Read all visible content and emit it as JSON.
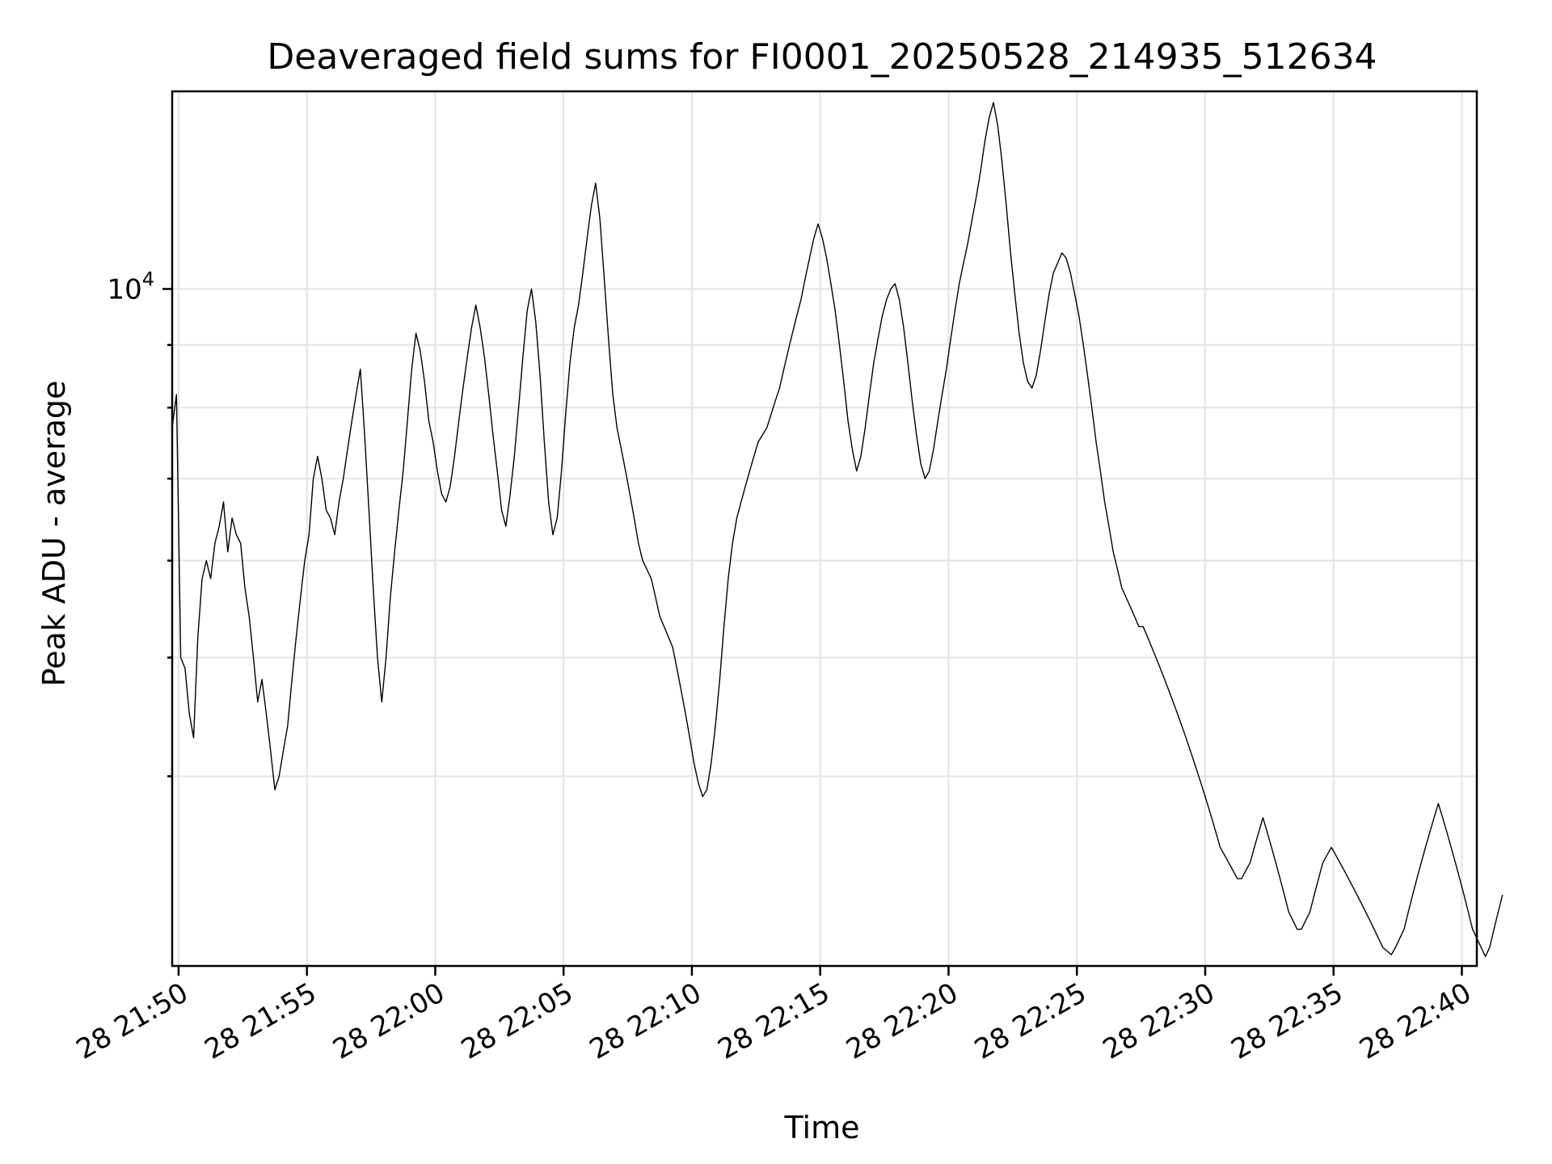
{
  "chart_data": {
    "type": "line",
    "title": "Deaveraged field sums for FI0001_20250528_214935_512634",
    "xlabel": "Time",
    "ylabel": "Peak ADU - average",
    "yscale": "log",
    "grid": true,
    "xlim": [
      "2025-05-28 21:49:45",
      "2025-05-28 22:40:35"
    ],
    "ylim": [
      2800,
      14500
    ],
    "x_ticks": [
      "28 21:50",
      "28 21:55",
      "28 22:00",
      "28 22:05",
      "28 22:10",
      "28 22:15",
      "28 22:20",
      "28 22:25",
      "28 22:30",
      "28 22:35",
      "28 22:40"
    ],
    "y_ticks": [
      {
        "value": 10000,
        "base": "10",
        "exp": "4"
      }
    ],
    "y_minor_ticks": [
      4000,
      5000,
      6000,
      7000,
      8000,
      9000
    ],
    "color": "#000000",
    "x_start": "2025-05-28 21:49:45",
    "x_step_seconds": 10,
    "series": [
      {
        "values": [
          7700,
          8200,
          5000,
          4900,
          4500,
          4300,
          5200,
          5800,
          6000,
          5800,
          6200,
          6400,
          6700,
          6100,
          6500,
          6300,
          6200,
          5700,
          5400,
          5000,
          4600,
          4800,
          4500,
          4200,
          3900,
          4000,
          4200,
          4400,
          4800,
          5200,
          5600,
          6000,
          6300,
          7000,
          7300,
          7000,
          6600,
          6500,
          6300,
          6700,
          7000,
          7400,
          7800,
          8200,
          8600,
          7600,
          6600,
          5700,
          5000,
          4600,
          5000,
          5600,
          6100,
          6600,
          7100,
          7800,
          8600,
          9200,
          8900,
          8400,
          7800,
          7500,
          7100,
          6800,
          6700,
          6900,
          7300,
          7800,
          8300,
          8800,
          9300,
          9700,
          9300,
          8800,
          8200,
          7600,
          7100,
          6600,
          6400,
          6800,
          7300,
          8000,
          8800,
          9600,
          10000,
          9400,
          8500,
          7500,
          6700,
          6300,
          6500,
          7100,
          7900,
          8700,
          9300,
          9700,
          10300,
          11000,
          11700,
          12200,
          11400,
          10200,
          9100,
          8200,
          7700,
          7400,
          7100,
          6800,
          6500,
          6200,
          6000,
          5900,
          5800,
          5600,
          5400,
          5300,
          5200,
          5100,
          4900,
          4700,
          4500,
          4300,
          4100,
          3950,
          3850,
          3900,
          4100,
          4400,
          4800,
          5300,
          5800,
          6200,
          6500,
          6700,
          6900,
          7100,
          7300,
          7500,
          7600,
          7700,
          7900,
          8100,
          8300,
          8600,
          8900,
          9200,
          9500,
          9800,
          10200,
          10600,
          11000,
          11300,
          11000,
          10600,
          10100,
          9600,
          9000,
          8400,
          7800,
          7400,
          7100,
          7300,
          7700,
          8200,
          8700,
          9100,
          9500,
          9800,
          10000,
          10100,
          9800,
          9300,
          8700,
          8100,
          7600,
          7200,
          7000,
          7100,
          7400,
          7800,
          8200,
          8600,
          9100,
          9600,
          10100,
          10500,
          10900,
          11400,
          11900,
          12500,
          13200,
          13800,
          14200,
          13600,
          12700,
          11700,
          10700,
          9900,
          9200,
          8700,
          8400,
          8300,
          8500,
          8900,
          9400,
          9900,
          10300,
          10500,
          10700,
          10600,
          10300,
          9900,
          9500,
          9000,
          8500,
          8000,
          7500,
          7100,
          6700,
          6400,
          6100,
          5900,
          5700,
          5600,
          5500,
          5400,
          5300,
          5300,
          5200,
          5100,
          5000,
          4900,
          4800,
          4700,
          4600,
          4500,
          4400,
          4300,
          4200,
          4100,
          4000,
          3900,
          3800,
          3700,
          3600,
          3500,
          3450,
          3400,
          3350,
          3300,
          3300,
          3350,
          3400,
          3500,
          3600,
          3700,
          3600,
          3500,
          3400,
          3300,
          3200,
          3100,
          3050,
          3000,
          3000,
          3050,
          3100,
          3200,
          3300,
          3400,
          3450,
          3500,
          3450,
          3400,
          3350,
          3300,
          3250,
          3200,
          3150,
          3100,
          3050,
          3000,
          2950,
          2900,
          2880,
          2860,
          2900,
          2950,
          3000,
          3100,
          3200,
          3300,
          3400,
          3500,
          3600,
          3700,
          3800,
          3700,
          3600,
          3500,
          3400,
          3300,
          3200,
          3100,
          3000,
          2950,
          2900,
          2850,
          2900,
          3000,
          3100,
          3200
        ]
      }
    ]
  }
}
